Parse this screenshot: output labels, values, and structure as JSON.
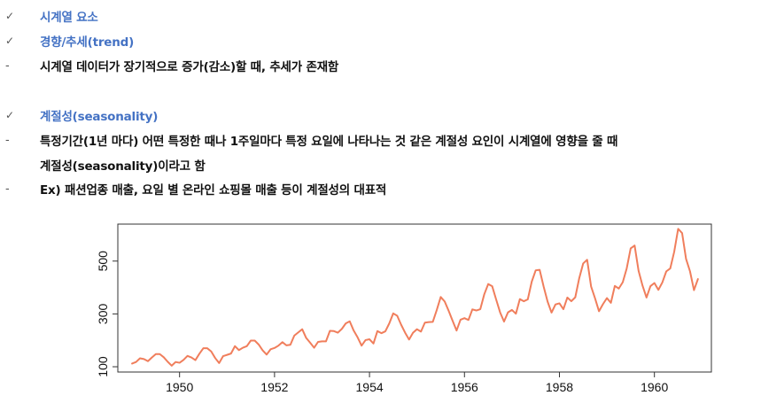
{
  "lines": [
    {
      "marker": "✓",
      "text": "시계열 요소",
      "style": "heading"
    },
    {
      "marker": "✓",
      "text": "경향/추세(trend)",
      "style": "heading"
    },
    {
      "marker": "-",
      "text": "시계열 데이터가 장기적으로 증가(감소)할 때, 추세가 존재함",
      "style": "body"
    },
    {
      "marker": "✓",
      "text": "계절성(seasonality)",
      "style": "heading"
    },
    {
      "marker": "-",
      "text": "특정기간(1년 마다) 어떤 특정한 때나 1주일마다 특정 요일에 나타나는 것 같은 계절성 요인이 시계열에 영향을 줄 때",
      "style": "body"
    },
    {
      "marker": "",
      "text": "계절성(seasonality)이라고 함",
      "style": "body"
    },
    {
      "marker": "-",
      "text": "Ex) 패션업종 매출, 요일 별 온라인 쇼핑몰 매출 등이 계절성의 대표적",
      "style": "body"
    }
  ],
  "colors": {
    "heading": "#4472C4",
    "body": "#111111",
    "series": "#F07E5C",
    "axis": "#333333"
  },
  "chart_data": {
    "type": "line",
    "title": "",
    "xlabel": "",
    "ylabel": "",
    "xlim": [
      1948.7,
      1961.2
    ],
    "ylim": [
      80,
      640
    ],
    "x_ticks": [
      1950,
      1952,
      1954,
      1956,
      1958,
      1960
    ],
    "x_tick_labels": [
      "1950",
      "1952",
      "1954",
      "1956",
      "1958",
      "1960"
    ],
    "y_ticks": [
      100,
      300,
      500
    ],
    "y_tick_labels": [
      "100",
      "300",
      "500"
    ],
    "grid": false,
    "legend": "none",
    "series": [
      {
        "start": 1949.0,
        "step": 0.0833333333,
        "values": [
          112,
          118,
          132,
          129,
          121,
          135,
          148,
          148,
          136,
          119,
          104,
          118,
          115,
          126,
          141,
          135,
          125,
          149,
          170,
          170,
          158,
          133,
          114,
          140,
          145,
          150,
          178,
          163,
          172,
          178,
          199,
          199,
          184,
          162,
          146,
          166,
          171,
          180,
          193,
          181,
          183,
          218,
          230,
          242,
          209,
          191,
          172,
          194,
          196,
          196,
          236,
          235,
          229,
          243,
          264,
          272,
          237,
          211,
          180,
          201,
          204,
          188,
          235,
          227,
          234,
          264,
          302,
          293,
          259,
          229,
          203,
          229,
          242,
          233,
          267,
          269,
          270,
          315,
          364,
          347,
          312,
          274,
          237,
          278,
          284,
          277,
          317,
          313,
          318,
          374,
          413,
          405,
          355,
          306,
          271,
          306,
          315,
          301,
          356,
          348,
          355,
          422,
          465,
          467,
          404,
          347,
          305,
          336,
          340,
          318,
          362,
          348,
          363,
          435,
          491,
          505,
          404,
          359,
          310,
          337,
          360,
          342,
          406,
          396,
          420,
          472,
          548,
          559,
          463,
          407,
          362,
          405,
          417,
          391,
          419,
          461,
          472,
          535,
          622,
          606,
          508,
          461,
          390,
          432
        ]
      }
    ]
  }
}
